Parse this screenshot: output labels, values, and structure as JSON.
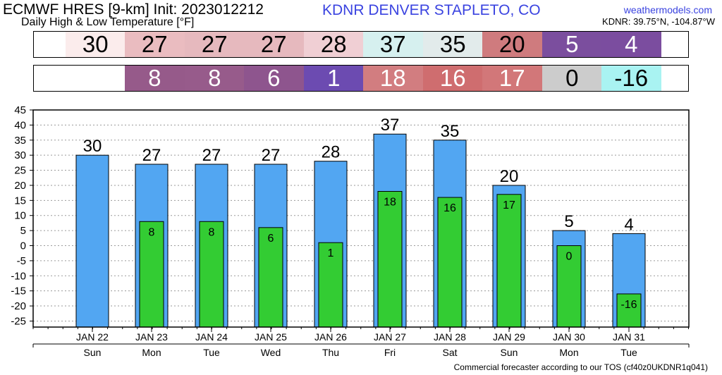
{
  "header": {
    "model": "ECMWF HRES [9-km] Init: 2023012212",
    "subtitle": "Daily High & Low Temperature [°F]",
    "station": "KDNR DENVER STAPLETO, CO",
    "site": "weathermodels.com",
    "coords": "KDNR: 39.75°N, -104.87°W"
  },
  "footer": "Commercial forecaster according to our TOS (cf40z0UKDNR1q041)",
  "colors": {
    "high_bar": "#52a6f2",
    "low_bar": "#33cc33",
    "grid": "#9a9a9a"
  },
  "strips": {
    "high": [
      {
        "value": "30",
        "color": "#fbecec"
      },
      {
        "value": "27",
        "color": "#eabcc0"
      },
      {
        "value": "27",
        "color": "#e6b9be"
      },
      {
        "value": "27",
        "color": "#e6b9be"
      },
      {
        "value": "28",
        "color": "#f0cfd4"
      },
      {
        "value": "37",
        "color": "#d6f0ef"
      },
      {
        "value": "35",
        "color": "#e2ebeb"
      },
      {
        "value": "20",
        "color": "#cf7b7e"
      },
      {
        "value": "5",
        "color": "#7b4e9e"
      },
      {
        "value": "4",
        "color": "#7b4d9f"
      }
    ],
    "low": [
      {
        "value": "",
        "color": "#ffffff"
      },
      {
        "value": "8",
        "color": "#965a8a"
      },
      {
        "value": "8",
        "color": "#975b8b"
      },
      {
        "value": "6",
        "color": "#8e558e"
      },
      {
        "value": "1",
        "color": "#6c4bb1"
      },
      {
        "value": "18",
        "color": "#d27d80"
      },
      {
        "value": "16",
        "color": "#cf6d6f"
      },
      {
        "value": "17",
        "color": "#d27779"
      },
      {
        "value": "0",
        "color": "#cccccc"
      },
      {
        "value": "-16",
        "color": "#a9f3f2"
      }
    ]
  },
  "chart_data": {
    "type": "bar",
    "categories": [
      "JAN 22",
      "JAN 23",
      "JAN 24",
      "JAN 25",
      "JAN 26",
      "JAN 27",
      "JAN 28",
      "JAN 29",
      "JAN 30",
      "JAN 31"
    ],
    "days": [
      "Sun",
      "Mon",
      "Tue",
      "Wed",
      "Thu",
      "Fri",
      "Sat",
      "Sun",
      "Mon",
      "Tue"
    ],
    "series": [
      {
        "values": [
          30,
          27,
          27,
          27,
          28,
          37,
          35,
          20,
          5,
          4
        ]
      },
      {
        "values": [
          null,
          8,
          8,
          6,
          1,
          18,
          16,
          17,
          0,
          -16
        ]
      }
    ],
    "ylim": [
      -27,
      45
    ],
    "yticks": [
      45,
      40,
      35,
      30,
      25,
      20,
      15,
      10,
      5,
      0,
      -5,
      -10,
      -15,
      -20,
      -25
    ],
    "grid": true
  }
}
